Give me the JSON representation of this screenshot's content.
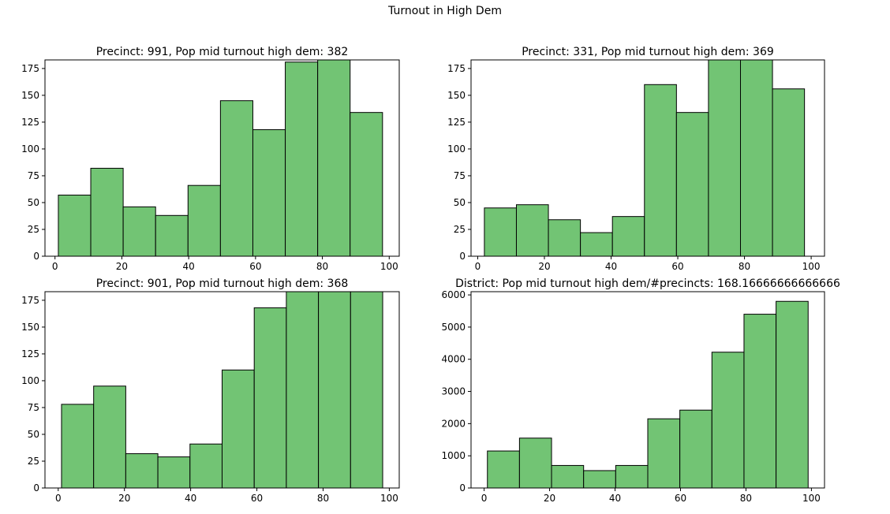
{
  "figure": {
    "title": "Turnout in High Dem",
    "bar_color": "#72c474",
    "edge_color": "#000000"
  },
  "chart_data": [
    {
      "type": "bar",
      "title": "Precinct: 991, Pop mid turnout high dem: 382",
      "xlim": [
        -3,
        103
      ],
      "ylim": [
        0,
        183
      ],
      "xticks": [
        0,
        20,
        40,
        60,
        80,
        100
      ],
      "yticks": [
        0,
        25,
        50,
        75,
        100,
        125,
        150,
        175
      ],
      "bin_edges": [
        1,
        10.7,
        20.4,
        30.1,
        39.8,
        49.5,
        59.2,
        68.9,
        78.6,
        88.3,
        98
      ],
      "values": [
        57,
        82,
        46,
        38,
        66,
        145,
        118,
        181,
        183,
        134
      ],
      "clipped_top": [
        false,
        false,
        false,
        false,
        false,
        false,
        false,
        false,
        true,
        false
      ]
    },
    {
      "type": "bar",
      "title": "Precinct: 331, Pop mid turnout high dem: 369",
      "xlim": [
        -2,
        104
      ],
      "ylim": [
        0,
        183
      ],
      "xticks": [
        0,
        20,
        40,
        60,
        80,
        100
      ],
      "yticks": [
        0,
        25,
        50,
        75,
        100,
        125,
        150,
        175
      ],
      "bin_edges": [
        2,
        11.6,
        21.2,
        30.8,
        40.4,
        50,
        59.6,
        69.2,
        78.8,
        88.4,
        98
      ],
      "values": [
        45,
        48,
        34,
        22,
        37,
        160,
        134,
        183,
        183,
        156
      ],
      "clipped_top": [
        false,
        false,
        false,
        false,
        false,
        false,
        false,
        true,
        true,
        false
      ]
    },
    {
      "type": "bar",
      "title": "Precinct: 901, Pop mid turnout high dem: 368",
      "xlim": [
        -4,
        103
      ],
      "ylim": [
        0,
        183
      ],
      "xticks": [
        0,
        20,
        40,
        60,
        80,
        100
      ],
      "yticks": [
        0,
        25,
        50,
        75,
        100,
        125,
        150,
        175
      ],
      "bin_edges": [
        1,
        10.7,
        20.4,
        30.1,
        39.8,
        49.5,
        59.2,
        68.9,
        78.6,
        88.3,
        98
      ],
      "values": [
        78,
        95,
        32,
        29,
        41,
        110,
        168,
        183,
        183,
        183
      ],
      "clipped_top": [
        false,
        false,
        false,
        false,
        false,
        false,
        false,
        true,
        true,
        true
      ]
    },
    {
      "type": "bar",
      "title": "District: Pop mid turnout high dem/#precincts: 168.16666666666666",
      "xlim": [
        -4,
        104
      ],
      "ylim": [
        0,
        6100
      ],
      "xticks": [
        0,
        20,
        40,
        60,
        80,
        100
      ],
      "yticks": [
        0,
        1000,
        2000,
        3000,
        4000,
        5000,
        6000
      ],
      "bin_edges": [
        1,
        10.8,
        20.6,
        30.4,
        40.2,
        50,
        59.8,
        69.6,
        79.4,
        89.2,
        99
      ],
      "values": [
        1150,
        1550,
        700,
        540,
        700,
        2150,
        2420,
        4220,
        5400,
        5800
      ],
      "clipped_top": [
        false,
        false,
        false,
        false,
        false,
        false,
        false,
        false,
        false,
        false
      ]
    }
  ]
}
